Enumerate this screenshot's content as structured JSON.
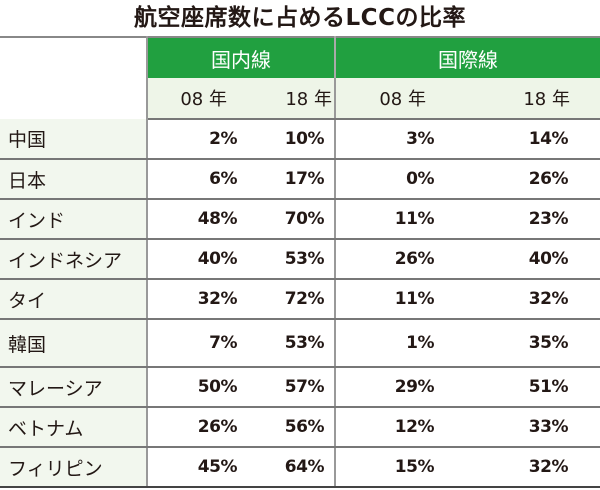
{
  "title": "航空座席数に占めるLCCの比率",
  "groups": [
    "国内線",
    "国際線"
  ],
  "years": [
    "08 年",
    "18 年",
    "08 年",
    "18 年"
  ],
  "rows": [
    {
      "country": "中国",
      "values": [
        "2%",
        "10%",
        "3%",
        "14%"
      ]
    },
    {
      "country": "日本",
      "values": [
        "6%",
        "17%",
        "0%",
        "26%"
      ]
    },
    {
      "country": "インド",
      "values": [
        "48%",
        "70%",
        "11%",
        "23%"
      ]
    },
    {
      "country": "インドネシア",
      "values": [
        "40%",
        "53%",
        "26%",
        "40%"
      ]
    },
    {
      "country": "タイ",
      "values": [
        "32%",
        "72%",
        "11%",
        "32%"
      ]
    },
    {
      "country": "韓国",
      "values": [
        "7%",
        "53%",
        "1%",
        "35%"
      ]
    },
    {
      "country": "マレーシア",
      "values": [
        "50%",
        "57%",
        "29%",
        "51%"
      ]
    },
    {
      "country": "ベトナム",
      "values": [
        "26%",
        "56%",
        "12%",
        "33%"
      ]
    },
    {
      "country": "フィリピン",
      "values": [
        "45%",
        "64%",
        "15%",
        "32%"
      ]
    }
  ],
  "colors": {
    "header_green": "#21a040",
    "subheader_bg": "#eef5e8",
    "label_bg": "#f2f7ee"
  }
}
